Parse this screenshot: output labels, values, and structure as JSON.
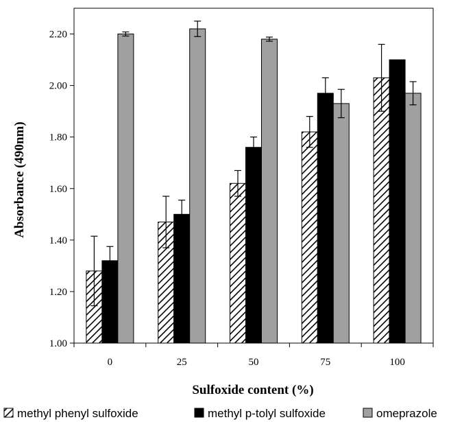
{
  "chart_data": {
    "type": "bar",
    "title": "",
    "xlabel": "Sulfoxide content (%)",
    "ylabel": "Absorbance (490nm)",
    "categories": [
      "0",
      "25",
      "50",
      "75",
      "100"
    ],
    "ylim": [
      1.0,
      2.3
    ],
    "yticks": [
      "1.00",
      "1.20",
      "1.40",
      "1.60",
      "1.80",
      "2.00",
      "2.20"
    ],
    "grid": false,
    "legend_position": "bottom",
    "series": [
      {
        "name": "methyl phenyl sulfoxide",
        "style": "hatched",
        "color": "#000000",
        "values": [
          1.28,
          1.47,
          1.62,
          1.82,
          2.03
        ],
        "errors": [
          0.135,
          0.1,
          0.05,
          0.06,
          0.13
        ]
      },
      {
        "name": "methyl p-tolyl sulfoxide",
        "style": "solid",
        "color": "#000000",
        "values": [
          1.32,
          1.5,
          1.76,
          1.97,
          2.1
        ],
        "errors": [
          0.055,
          0.055,
          0.04,
          0.06,
          0.0
        ]
      },
      {
        "name": "omeprazole",
        "style": "solid",
        "color": "#a0a0a0",
        "values": [
          2.2,
          2.22,
          2.18,
          1.93,
          1.97
        ],
        "errors": [
          0.008,
          0.03,
          0.008,
          0.055,
          0.045
        ]
      }
    ]
  }
}
